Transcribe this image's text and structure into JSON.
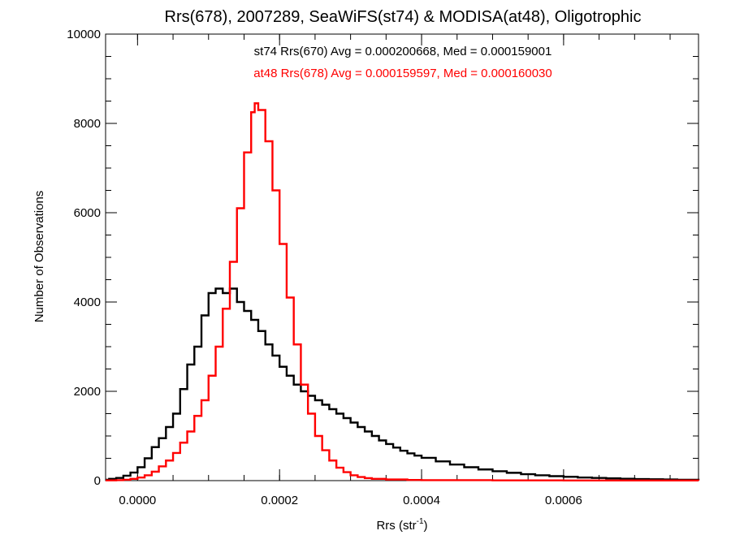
{
  "chart_data": {
    "type": "histogram",
    "title": "Rrs(678), 2007289, SeaWiFS(st74) & MODISA(at48), Oligotrophic",
    "xlabel": {
      "base": "Rrs (str",
      "sup": "-1",
      "close": ")"
    },
    "ylabel": "Number of Observations",
    "xlim": [
      -4.5e-05,
      0.00079
    ],
    "ylim": [
      0,
      10000
    ],
    "x_ticks": [
      0.0,
      0.0002,
      0.0004,
      0.0006
    ],
    "x_tick_labels": [
      "0.0000",
      "0.0002",
      "0.0004",
      "0.0006"
    ],
    "y_ticks": [
      0,
      2000,
      4000,
      6000,
      8000,
      10000
    ],
    "y_tick_labels": [
      "0",
      "2000",
      "4000",
      "6000",
      "8000",
      "10000"
    ],
    "grid": false,
    "annotations": [
      {
        "text": "st74 Rrs(670) Avg = 0.000200668, Med = 0.000159001",
        "color": "#000000"
      },
      {
        "text": "at48 Rrs(678) Avg = 0.000159597, Med = 0.000160030",
        "color": "#ff0000"
      }
    ],
    "series": [
      {
        "color": "#000000",
        "points": [
          [
            -4.5e-05,
            20
          ],
          [
            -4e-05,
            40
          ],
          [
            -3e-05,
            60
          ],
          [
            -2e-05,
            110
          ],
          [
            -1e-05,
            180
          ],
          [
            0.0,
            300
          ],
          [
            1e-05,
            500
          ],
          [
            2e-05,
            750
          ],
          [
            3e-05,
            950
          ],
          [
            4e-05,
            1200
          ],
          [
            5e-05,
            1500
          ],
          [
            6e-05,
            2050
          ],
          [
            7e-05,
            2600
          ],
          [
            8e-05,
            3000
          ],
          [
            9e-05,
            3700
          ],
          [
            0.0001,
            4200
          ],
          [
            0.00011,
            4300
          ],
          [
            0.00012,
            4200
          ],
          [
            0.00013,
            4300
          ],
          [
            0.00014,
            4000
          ],
          [
            0.00015,
            3800
          ],
          [
            0.00016,
            3600
          ],
          [
            0.00017,
            3350
          ],
          [
            0.00018,
            3050
          ],
          [
            0.00019,
            2800
          ],
          [
            0.0002,
            2550
          ],
          [
            0.00021,
            2350
          ],
          [
            0.00022,
            2150
          ],
          [
            0.00023,
            2000
          ],
          [
            0.00024,
            1900
          ],
          [
            0.00025,
            1800
          ],
          [
            0.00026,
            1700
          ],
          [
            0.00027,
            1600
          ],
          [
            0.00028,
            1500
          ],
          [
            0.00029,
            1400
          ],
          [
            0.0003,
            1300
          ],
          [
            0.00031,
            1200
          ],
          [
            0.00032,
            1100
          ],
          [
            0.00033,
            1000
          ],
          [
            0.00034,
            900
          ],
          [
            0.00035,
            820
          ],
          [
            0.00036,
            740
          ],
          [
            0.00037,
            670
          ],
          [
            0.00038,
            610
          ],
          [
            0.00039,
            560
          ],
          [
            0.0004,
            510
          ],
          [
            0.00042,
            430
          ],
          [
            0.00044,
            360
          ],
          [
            0.00046,
            300
          ],
          [
            0.00048,
            250
          ],
          [
            0.0005,
            210
          ],
          [
            0.00052,
            175
          ],
          [
            0.00054,
            145
          ],
          [
            0.00056,
            120
          ],
          [
            0.00058,
            100
          ],
          [
            0.0006,
            85
          ],
          [
            0.00062,
            70
          ],
          [
            0.00064,
            60
          ],
          [
            0.00066,
            50
          ],
          [
            0.00068,
            42
          ],
          [
            0.0007,
            35
          ],
          [
            0.00072,
            30
          ],
          [
            0.00074,
            25
          ],
          [
            0.00076,
            20
          ],
          [
            0.00079,
            15
          ]
        ]
      },
      {
        "color": "#ff0000",
        "points": [
          [
            -4.5e-05,
            5
          ],
          [
            -3e-05,
            10
          ],
          [
            -2e-05,
            20
          ],
          [
            -1e-05,
            40
          ],
          [
            0.0,
            70
          ],
          [
            1e-05,
            120
          ],
          [
            2e-05,
            200
          ],
          [
            3e-05,
            320
          ],
          [
            4e-05,
            450
          ],
          [
            5e-05,
            620
          ],
          [
            6e-05,
            850
          ],
          [
            7e-05,
            1100
          ],
          [
            8e-05,
            1450
          ],
          [
            9e-05,
            1800
          ],
          [
            0.0001,
            2350
          ],
          [
            0.00011,
            3000
          ],
          [
            0.00012,
            3850
          ],
          [
            0.00013,
            4900
          ],
          [
            0.00014,
            6100
          ],
          [
            0.00015,
            7350
          ],
          [
            0.00016,
            8250
          ],
          [
            0.000165,
            8450
          ],
          [
            0.00017,
            8300
          ],
          [
            0.00018,
            7600
          ],
          [
            0.00019,
            6500
          ],
          [
            0.0002,
            5300
          ],
          [
            0.00021,
            4100
          ],
          [
            0.00022,
            3050
          ],
          [
            0.00023,
            2150
          ],
          [
            0.00024,
            1500
          ],
          [
            0.00025,
            1000
          ],
          [
            0.00026,
            680
          ],
          [
            0.00027,
            450
          ],
          [
            0.00028,
            290
          ],
          [
            0.00029,
            190
          ],
          [
            0.0003,
            120
          ],
          [
            0.00031,
            80
          ],
          [
            0.00032,
            55
          ],
          [
            0.00033,
            40
          ],
          [
            0.00035,
            25
          ],
          [
            0.00038,
            15
          ],
          [
            0.0004,
            10
          ],
          [
            0.0005,
            5
          ],
          [
            0.0006,
            3
          ],
          [
            0.00079,
            0
          ]
        ]
      }
    ]
  }
}
